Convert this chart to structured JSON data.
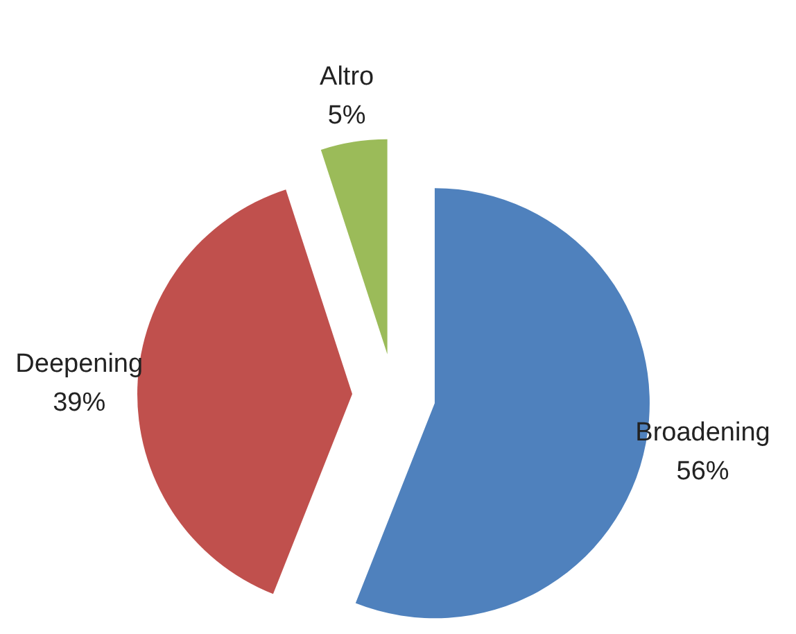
{
  "chart_data": {
    "type": "pie",
    "categories": [
      "Broadening",
      "Deepening",
      "Altro"
    ],
    "values": [
      56,
      39,
      5
    ],
    "value_labels": [
      "56%",
      "39%",
      "5%"
    ],
    "colors": [
      "#4f81bd",
      "#c0504d",
      "#9bbb59"
    ]
  }
}
